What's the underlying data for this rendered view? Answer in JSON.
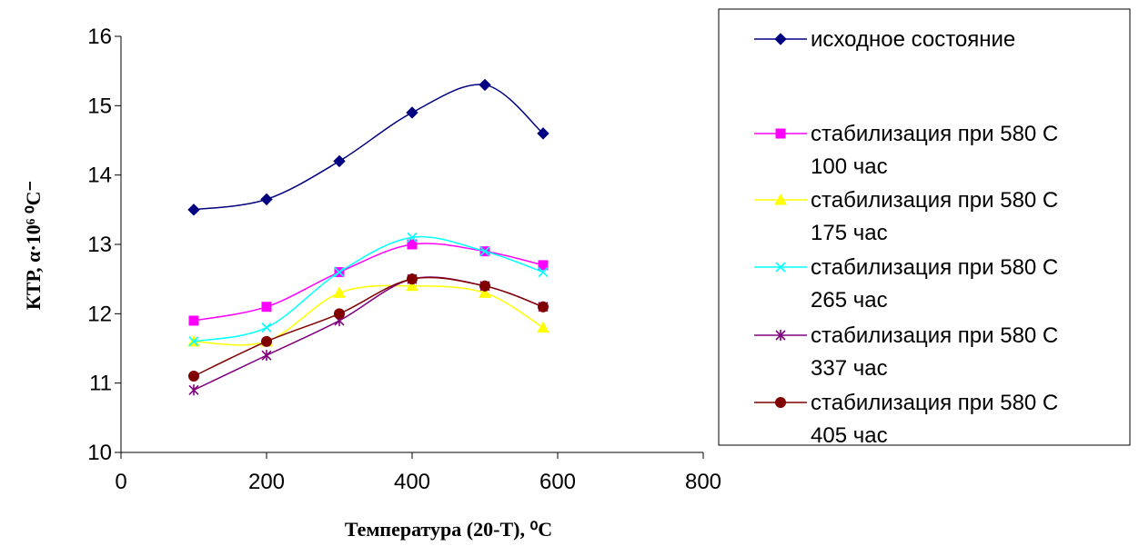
{
  "chart_data": {
    "type": "line",
    "x": [
      100,
      200,
      300,
      400,
      500,
      580
    ],
    "xlabel": "Температура (20-Т), ⁰С",
    "ylabel": "КТР,  α·10⁶ ⁰С⁻",
    "xlim": [
      0,
      800
    ],
    "ylim": [
      10,
      16
    ],
    "xticks": [
      0,
      200,
      400,
      600,
      800
    ],
    "yticks": [
      10,
      11,
      12,
      13,
      14,
      15,
      16
    ],
    "grid": false,
    "legend_position": "right",
    "series": [
      {
        "name_lines": [
          "исходное состояние"
        ],
        "color": "#000080",
        "marker": "diamond",
        "values": [
          13.5,
          13.65,
          14.2,
          14.9,
          15.3,
          14.6
        ]
      },
      {
        "name_lines": [
          "стабилизация при 580 С",
          "100 час"
        ],
        "color": "#ff00ff",
        "marker": "square",
        "values": [
          11.9,
          12.1,
          12.6,
          13.0,
          12.9,
          12.7
        ]
      },
      {
        "name_lines": [
          "стабилизация при 580 С",
          "175 час"
        ],
        "color": "#ffff00",
        "marker": "triangle",
        "values": [
          11.6,
          11.6,
          12.3,
          12.4,
          12.3,
          11.8
        ]
      },
      {
        "name_lines": [
          "стабилизация при 580 С",
          "265 час"
        ],
        "color": "#00ffff",
        "marker": "x",
        "values": [
          11.6,
          11.8,
          12.6,
          13.1,
          12.9,
          12.6
        ]
      },
      {
        "name_lines": [
          "стабилизация при 580 С",
          "337 час"
        ],
        "color": "#800080",
        "marker": "star",
        "values": [
          10.9,
          11.4,
          11.9,
          12.5,
          12.4,
          12.1
        ]
      },
      {
        "name_lines": [
          "стабилизация при 580 С",
          "405 час"
        ],
        "color": "#800000",
        "marker": "circle",
        "values": [
          11.1,
          11.6,
          12.0,
          12.5,
          12.4,
          12.1
        ]
      }
    ]
  }
}
